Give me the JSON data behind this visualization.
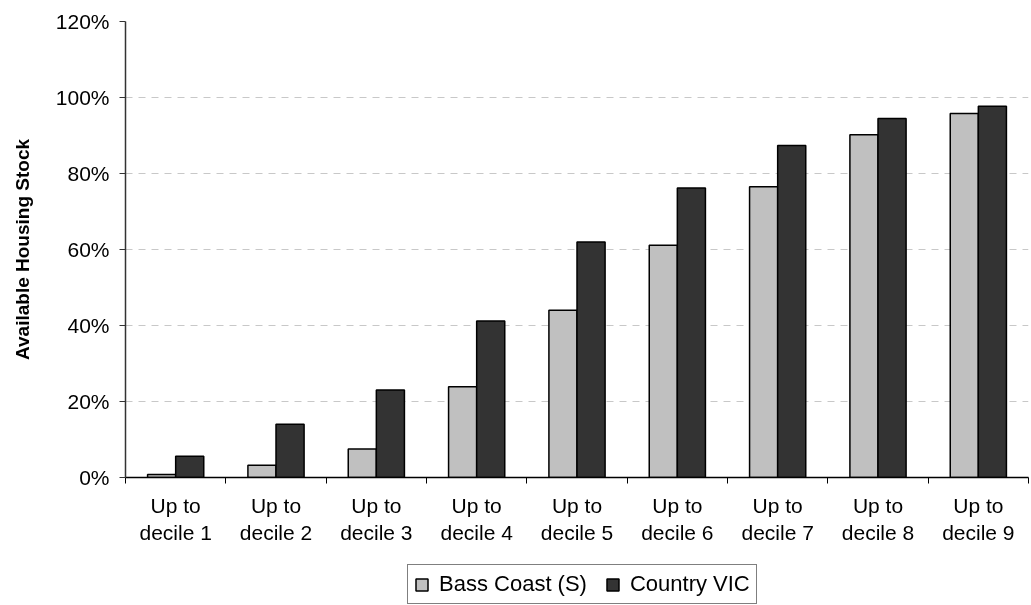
{
  "chart_data": {
    "type": "bar",
    "ylabel": "Available Housing Stock",
    "categories": [
      "Up to decile 1",
      "Up to decile 2",
      "Up to decile 3",
      "Up to decile 4",
      "Up to decile 5",
      "Up to decile 6",
      "Up to decile 7",
      "Up to decile 8",
      "Up to decile 9"
    ],
    "series": [
      {
        "name": "Bass Coast (S)",
        "color": "#c0c0c0",
        "values": [
          0.8,
          3.2,
          7.5,
          23.9,
          44.0,
          61.1,
          76.5,
          90.2,
          95.8
        ]
      },
      {
        "name": "Country VIC",
        "color": "#333333",
        "values": [
          5.6,
          14.0,
          23.0,
          41.2,
          62.0,
          76.2,
          87.4,
          94.5,
          97.7
        ]
      }
    ],
    "ylim": [
      0,
      120
    ],
    "yticks": [
      {
        "value": 0,
        "label": "0%"
      },
      {
        "value": 20,
        "label": "20%"
      },
      {
        "value": 40,
        "label": "40%"
      },
      {
        "value": 60,
        "label": "60%"
      },
      {
        "value": 80,
        "label": "80%"
      },
      {
        "value": 100,
        "label": "100%"
      },
      {
        "value": 120,
        "label": "120%"
      }
    ],
    "grid": "y",
    "legend": "bottom"
  }
}
